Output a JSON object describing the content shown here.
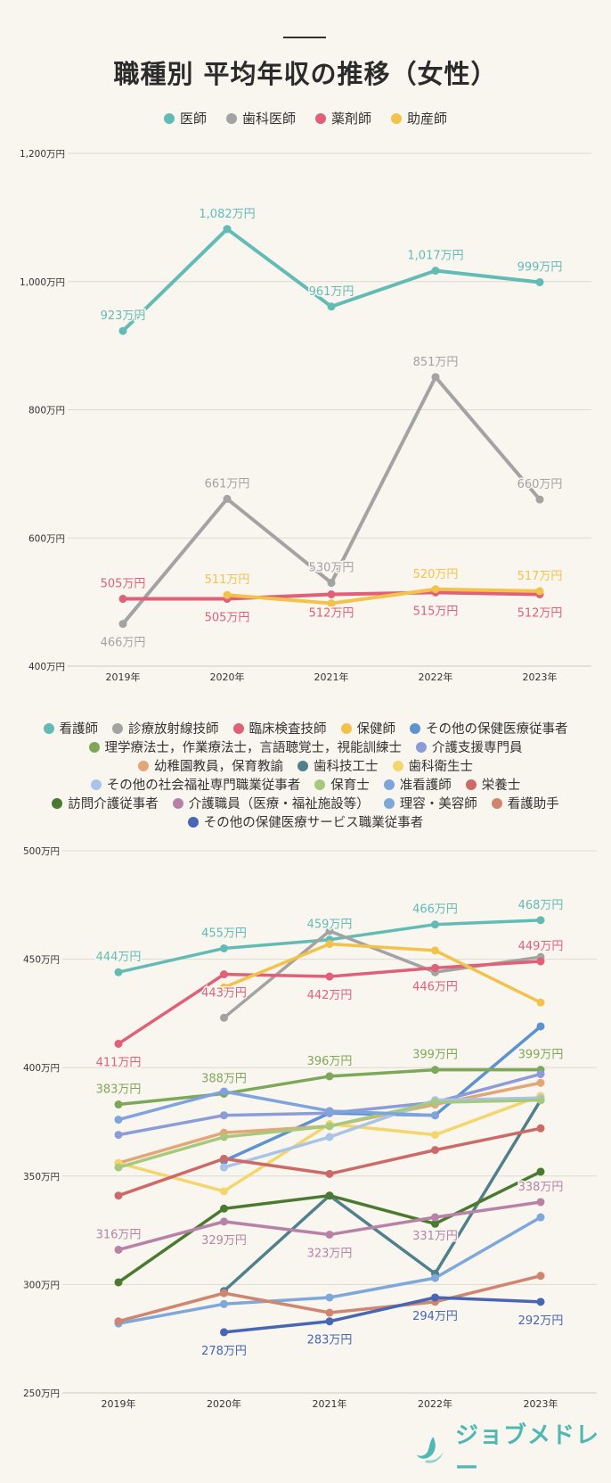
{
  "title": "職種別 平均年収の推移（女性）",
  "chart_data": [
    {
      "type": "line",
      "x": [
        "2019年",
        "2020年",
        "2021年",
        "2022年",
        "2023年"
      ],
      "y_ticks": [
        "1,200万円",
        "1,000万円",
        "800万円",
        "600万円",
        "400万円"
      ],
      "ylim": [
        400,
        1200
      ],
      "grid": true,
      "legend_position": "top",
      "series": [
        {
          "name": "医師",
          "color": "#62bcb5",
          "values": [
            923,
            1082,
            961,
            1017,
            999
          ],
          "labels": [
            "923万円",
            "1,082万円",
            "961万円",
            "1,017万円",
            "999万円"
          ],
          "label_pos": [
            "above",
            "above",
            "above",
            "above",
            "above"
          ]
        },
        {
          "name": "歯科医師",
          "color": "#a3a3a3",
          "values": [
            466,
            661,
            530,
            851,
            660
          ],
          "labels": [
            "466万円",
            "661万円",
            "530万円",
            "851万円",
            "660万円"
          ],
          "label_pos": [
            "below",
            "above",
            "above",
            "above",
            "above"
          ]
        },
        {
          "name": "薬剤師",
          "color": "#e0607a",
          "values": [
            505,
            505,
            512,
            515,
            512
          ],
          "labels": [
            "505万円",
            "505万円",
            "512万円",
            "515万円",
            "512万円"
          ],
          "label_pos": [
            "above",
            "below",
            "below",
            "below",
            "below"
          ]
        },
        {
          "name": "助産師",
          "color": "#f2c24b",
          "values": [
            null,
            511,
            498,
            520,
            517
          ],
          "labels": [
            "",
            "511万円",
            "",
            "520万円",
            "517万円"
          ],
          "label_pos": [
            "above",
            "above",
            "above",
            "above",
            "above"
          ]
        }
      ]
    },
    {
      "type": "line",
      "x": [
        "2019年",
        "2020年",
        "2021年",
        "2022年",
        "2023年"
      ],
      "y_ticks": [
        "500万円",
        "450万円",
        "400万円",
        "350万円",
        "300万円",
        "250万円"
      ],
      "ylim": [
        250,
        500
      ],
      "grid": true,
      "legend_position": "top",
      "series": [
        {
          "name": "看護師",
          "color": "#62bcb5",
          "values": [
            444,
            455,
            459,
            466,
            468
          ],
          "labels": [
            "444万円",
            "455万円",
            "459万円",
            "466万円",
            "468万円"
          ],
          "label_pos": [
            "above",
            "above",
            "above",
            "above",
            "above"
          ]
        },
        {
          "name": "診療放射線技師",
          "color": "#a3a3a3",
          "values": [
            null,
            423,
            463,
            444,
            451
          ],
          "labels": [],
          "label_pos": []
        },
        {
          "name": "臨床検査技師",
          "color": "#e0607a",
          "values": [
            411,
            443,
            442,
            446,
            449
          ],
          "labels": [
            "411万円",
            "443万円",
            "442万円",
            "446万円",
            "449万円"
          ],
          "label_pos": [
            "below",
            "below",
            "below",
            "below",
            "above"
          ]
        },
        {
          "name": "保健師",
          "color": "#f2c24b",
          "values": [
            null,
            437,
            457,
            454,
            430
          ],
          "labels": [],
          "label_pos": []
        },
        {
          "name": "その他の保健医療従事者",
          "color": "#5e93d0",
          "values": [
            null,
            357,
            379,
            378,
            419
          ],
          "labels": [],
          "label_pos": []
        },
        {
          "name": "理学療法士，作業療法士，言語聴覚士，視能訓練士",
          "color": "#7ea859",
          "values": [
            383,
            388,
            396,
            399,
            399
          ],
          "labels": [
            "383万円",
            "388万円",
            "396万円",
            "399万円",
            "399万円"
          ],
          "label_pos": [
            "above",
            "above",
            "above",
            "above",
            "above"
          ]
        },
        {
          "name": "介護支援専門員",
          "color": "#8b9cd8",
          "values": [
            369,
            378,
            379,
            384,
            397
          ],
          "labels": [],
          "label_pos": []
        },
        {
          "name": "幼稚園教員，保育教諭",
          "color": "#e3a679",
          "values": [
            356,
            370,
            373,
            383,
            393
          ],
          "labels": [],
          "label_pos": []
        },
        {
          "name": "歯科技工士",
          "color": "#50808b",
          "values": [
            null,
            297,
            341,
            305,
            385
          ],
          "labels": [],
          "label_pos": []
        },
        {
          "name": "歯科衛生士",
          "color": "#f4d66e",
          "values": [
            356,
            343,
            374,
            369,
            387
          ],
          "labels": [],
          "label_pos": []
        },
        {
          "name": "その他の社会福祉専門職業従事者",
          "color": "#a9c4e6",
          "values": [
            null,
            354,
            368,
            385,
            386
          ],
          "labels": [],
          "label_pos": []
        },
        {
          "name": "保育士",
          "color": "#a6c97e",
          "values": [
            354,
            368,
            373,
            384,
            385
          ],
          "labels": [],
          "label_pos": []
        },
        {
          "name": "准看護師",
          "color": "#7fa3dc",
          "values": [
            376,
            389,
            380,
            378,
            null
          ],
          "labels": [],
          "label_pos": []
        },
        {
          "name": "栄養士",
          "color": "#cc6a68",
          "values": [
            341,
            358,
            351,
            362,
            372
          ],
          "labels": [],
          "label_pos": []
        },
        {
          "name": "訪問介護従事者",
          "color": "#4a7a30",
          "values": [
            301,
            335,
            341,
            328,
            352
          ],
          "labels": [],
          "label_pos": []
        },
        {
          "name": "介護職員（医療・福祉施設等）",
          "color": "#b882a8",
          "values": [
            316,
            329,
            323,
            331,
            338
          ],
          "labels": [
            "316万円",
            "329万円",
            "323万円",
            "331万円",
            "338万円"
          ],
          "label_pos": [
            "above",
            "below",
            "below",
            "below",
            "above"
          ]
        },
        {
          "name": "理容・美容師",
          "color": "#7ea8da",
          "values": [
            282,
            291,
            294,
            303,
            331
          ],
          "labels": [],
          "label_pos": []
        },
        {
          "name": "看護助手",
          "color": "#d08570",
          "values": [
            283,
            296,
            287,
            292,
            304
          ],
          "labels": [],
          "label_pos": []
        },
        {
          "name": "その他の保健医療サービス職業従事者",
          "color": "#4766b4",
          "values": [
            null,
            278,
            283,
            294,
            292
          ],
          "labels": [
            "",
            "278万円",
            "283万円",
            "294万円",
            "292万円"
          ],
          "label_pos": [
            "below",
            "below",
            "below",
            "below",
            "below"
          ]
        }
      ]
    }
  ],
  "logo": {
    "text": "ジョブメドレー",
    "icon": "leaf-mark-icon",
    "color": "#4fb8b2"
  }
}
